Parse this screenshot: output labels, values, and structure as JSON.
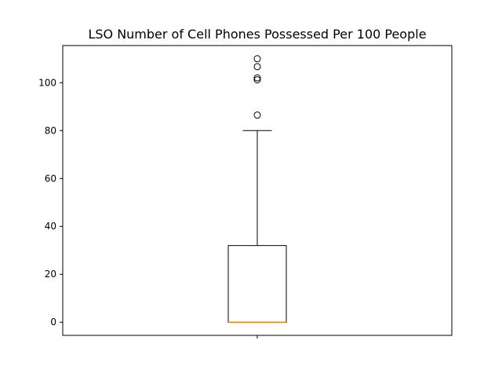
{
  "chart_data": {
    "type": "box",
    "title": "LSO Number of Cell Phones Possessed Per 100 People",
    "xlabel": "",
    "ylabel": "",
    "ylim": [
      -5.5,
      115.5
    ],
    "yticks": [
      0,
      20,
      40,
      60,
      80,
      100
    ],
    "xticks": [
      ""
    ],
    "grid": false,
    "legend": "none",
    "box": {
      "whisker_low": 0,
      "q1": 0,
      "median": 0,
      "q3": 32,
      "whisker_high": 80,
      "outliers": [
        86.5,
        101.2,
        102.0,
        106.7,
        110.0
      ]
    },
    "colors": {
      "box": "#000000",
      "median": "#ff7f0e",
      "axes": "#000000"
    }
  }
}
